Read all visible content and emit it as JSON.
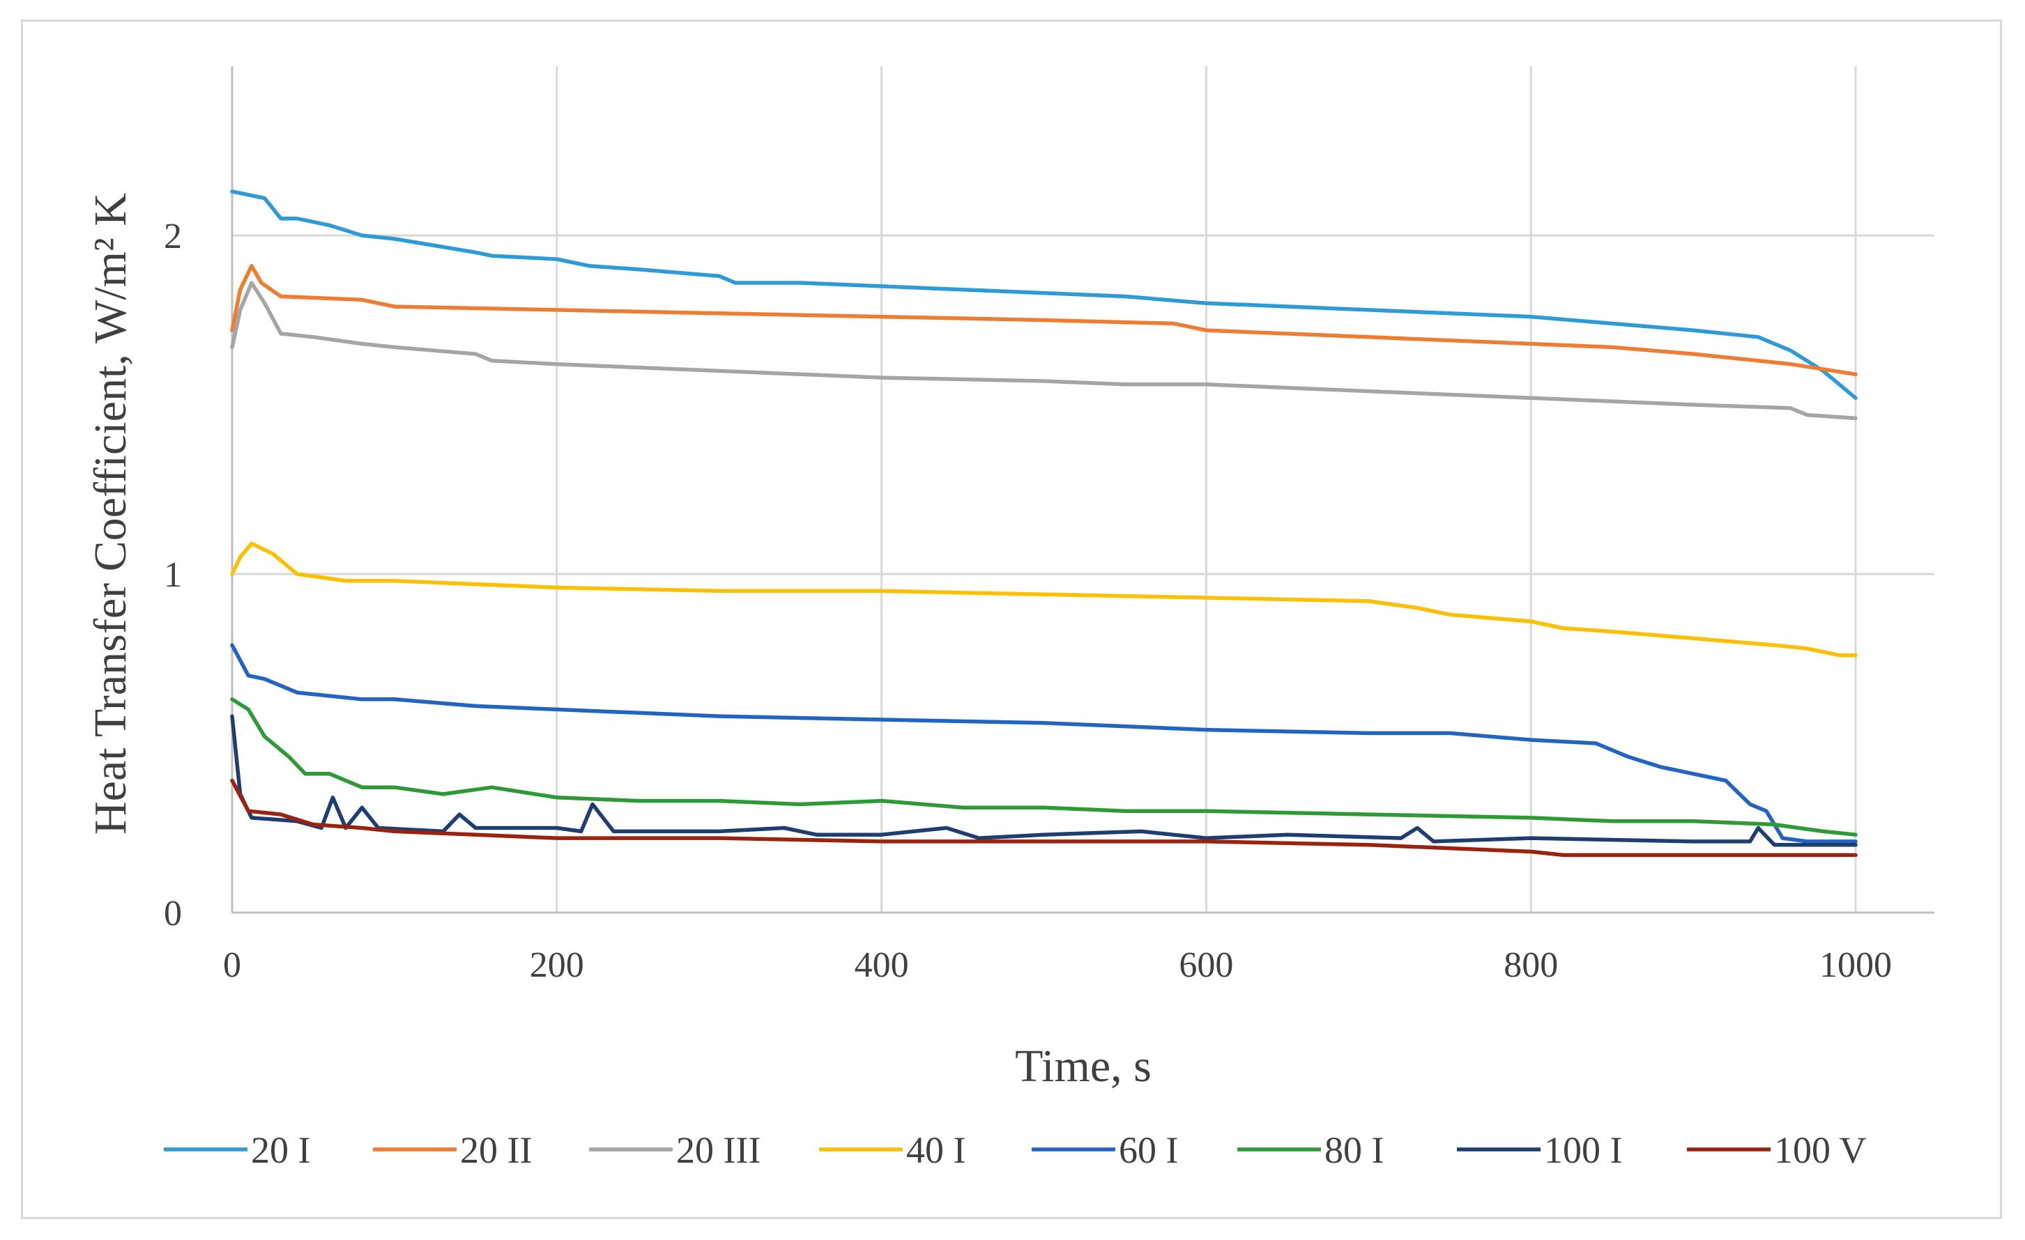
{
  "chart_data": {
    "type": "line",
    "title": "",
    "xlabel": "Time, s",
    "ylabel": "Heat Transfer Coefficient, W/m² K",
    "xlim": [
      0,
      1000
    ],
    "ylim": [
      0,
      2.5
    ],
    "x_ticks": [
      0,
      200,
      400,
      600,
      800,
      1000
    ],
    "x_tick_labels": [
      "0",
      "200",
      "400",
      "600",
      "800",
      "1000"
    ],
    "y_ticks": [
      0,
      1,
      2
    ],
    "y_tick_labels": [
      "0",
      "1",
      "2"
    ],
    "grid": true,
    "legend_position": "bottom",
    "series": [
      {
        "name": "20 I",
        "color": "#2e9bd6",
        "points": [
          [
            0,
            2.13
          ],
          [
            20,
            2.11
          ],
          [
            30,
            2.05
          ],
          [
            40,
            2.05
          ],
          [
            60,
            2.03
          ],
          [
            80,
            2.0
          ],
          [
            100,
            1.99
          ],
          [
            150,
            1.95
          ],
          [
            160,
            1.94
          ],
          [
            200,
            1.93
          ],
          [
            220,
            1.91
          ],
          [
            250,
            1.9
          ],
          [
            300,
            1.88
          ],
          [
            310,
            1.86
          ],
          [
            350,
            1.86
          ],
          [
            400,
            1.85
          ],
          [
            500,
            1.83
          ],
          [
            550,
            1.82
          ],
          [
            600,
            1.8
          ],
          [
            700,
            1.78
          ],
          [
            800,
            1.76
          ],
          [
            850,
            1.74
          ],
          [
            900,
            1.72
          ],
          [
            940,
            1.7
          ],
          [
            960,
            1.66
          ],
          [
            980,
            1.6
          ],
          [
            1000,
            1.52
          ]
        ]
      },
      {
        "name": "20 II",
        "color": "#ee7d31",
        "points": [
          [
            0,
            1.72
          ],
          [
            5,
            1.84
          ],
          [
            12,
            1.91
          ],
          [
            18,
            1.86
          ],
          [
            30,
            1.82
          ],
          [
            80,
            1.81
          ],
          [
            100,
            1.79
          ],
          [
            200,
            1.78
          ],
          [
            300,
            1.77
          ],
          [
            400,
            1.76
          ],
          [
            500,
            1.75
          ],
          [
            580,
            1.74
          ],
          [
            600,
            1.72
          ],
          [
            700,
            1.7
          ],
          [
            800,
            1.68
          ],
          [
            850,
            1.67
          ],
          [
            900,
            1.65
          ],
          [
            960,
            1.62
          ],
          [
            1000,
            1.59
          ]
        ]
      },
      {
        "name": "20 III",
        "color": "#a5a5a5",
        "points": [
          [
            0,
            1.67
          ],
          [
            5,
            1.78
          ],
          [
            12,
            1.86
          ],
          [
            20,
            1.8
          ],
          [
            30,
            1.71
          ],
          [
            50,
            1.7
          ],
          [
            80,
            1.68
          ],
          [
            100,
            1.67
          ],
          [
            150,
            1.65
          ],
          [
            160,
            1.63
          ],
          [
            200,
            1.62
          ],
          [
            300,
            1.6
          ],
          [
            400,
            1.58
          ],
          [
            500,
            1.57
          ],
          [
            550,
            1.56
          ],
          [
            600,
            1.56
          ],
          [
            700,
            1.54
          ],
          [
            800,
            1.52
          ],
          [
            900,
            1.5
          ],
          [
            960,
            1.49
          ],
          [
            970,
            1.47
          ],
          [
            1000,
            1.46
          ]
        ]
      },
      {
        "name": "40 I",
        "color": "#fdc000",
        "points": [
          [
            0,
            1.0
          ],
          [
            5,
            1.05
          ],
          [
            12,
            1.09
          ],
          [
            25,
            1.06
          ],
          [
            40,
            1.0
          ],
          [
            70,
            0.98
          ],
          [
            100,
            0.98
          ],
          [
            150,
            0.97
          ],
          [
            200,
            0.96
          ],
          [
            300,
            0.95
          ],
          [
            400,
            0.95
          ],
          [
            500,
            0.94
          ],
          [
            600,
            0.93
          ],
          [
            700,
            0.92
          ],
          [
            730,
            0.9
          ],
          [
            750,
            0.88
          ],
          [
            800,
            0.86
          ],
          [
            820,
            0.84
          ],
          [
            850,
            0.83
          ],
          [
            900,
            0.81
          ],
          [
            950,
            0.79
          ],
          [
            970,
            0.78
          ],
          [
            990,
            0.76
          ],
          [
            1000,
            0.76
          ]
        ]
      },
      {
        "name": "60 I",
        "color": "#2164c2",
        "points": [
          [
            0,
            0.79
          ],
          [
            10,
            0.7
          ],
          [
            20,
            0.69
          ],
          [
            40,
            0.65
          ],
          [
            80,
            0.63
          ],
          [
            100,
            0.63
          ],
          [
            150,
            0.61
          ],
          [
            200,
            0.6
          ],
          [
            300,
            0.58
          ],
          [
            400,
            0.57
          ],
          [
            500,
            0.56
          ],
          [
            600,
            0.54
          ],
          [
            700,
            0.53
          ],
          [
            750,
            0.53
          ],
          [
            800,
            0.51
          ],
          [
            840,
            0.5
          ],
          [
            860,
            0.46
          ],
          [
            880,
            0.43
          ],
          [
            920,
            0.39
          ],
          [
            935,
            0.32
          ],
          [
            945,
            0.3
          ],
          [
            955,
            0.22
          ],
          [
            970,
            0.21
          ],
          [
            1000,
            0.21
          ]
        ]
      },
      {
        "name": "80 I",
        "color": "#2e9a36",
        "points": [
          [
            0,
            0.63
          ],
          [
            10,
            0.6
          ],
          [
            20,
            0.52
          ],
          [
            35,
            0.46
          ],
          [
            45,
            0.41
          ],
          [
            60,
            0.41
          ],
          [
            80,
            0.37
          ],
          [
            100,
            0.37
          ],
          [
            130,
            0.35
          ],
          [
            160,
            0.37
          ],
          [
            200,
            0.34
          ],
          [
            250,
            0.33
          ],
          [
            300,
            0.33
          ],
          [
            350,
            0.32
          ],
          [
            400,
            0.33
          ],
          [
            450,
            0.31
          ],
          [
            500,
            0.31
          ],
          [
            550,
            0.3
          ],
          [
            600,
            0.3
          ],
          [
            700,
            0.29
          ],
          [
            800,
            0.28
          ],
          [
            850,
            0.27
          ],
          [
            900,
            0.27
          ],
          [
            950,
            0.26
          ],
          [
            980,
            0.24
          ],
          [
            1000,
            0.23
          ]
        ]
      },
      {
        "name": "100 I",
        "color": "#1e3d70",
        "points": [
          [
            0,
            0.58
          ],
          [
            5,
            0.35
          ],
          [
            12,
            0.28
          ],
          [
            40,
            0.27
          ],
          [
            55,
            0.25
          ],
          [
            62,
            0.34
          ],
          [
            70,
            0.25
          ],
          [
            80,
            0.31
          ],
          [
            90,
            0.25
          ],
          [
            130,
            0.24
          ],
          [
            140,
            0.29
          ],
          [
            150,
            0.25
          ],
          [
            200,
            0.25
          ],
          [
            215,
            0.24
          ],
          [
            222,
            0.32
          ],
          [
            235,
            0.24
          ],
          [
            300,
            0.24
          ],
          [
            340,
            0.25
          ],
          [
            360,
            0.23
          ],
          [
            400,
            0.23
          ],
          [
            440,
            0.25
          ],
          [
            460,
            0.22
          ],
          [
            500,
            0.23
          ],
          [
            560,
            0.24
          ],
          [
            600,
            0.22
          ],
          [
            650,
            0.23
          ],
          [
            720,
            0.22
          ],
          [
            730,
            0.25
          ],
          [
            740,
            0.21
          ],
          [
            800,
            0.22
          ],
          [
            900,
            0.21
          ],
          [
            935,
            0.21
          ],
          [
            940,
            0.25
          ],
          [
            950,
            0.2
          ],
          [
            980,
            0.2
          ],
          [
            1000,
            0.2
          ]
        ]
      },
      {
        "name": "100 V",
        "color": "#9a220e",
        "points": [
          [
            0,
            0.39
          ],
          [
            10,
            0.3
          ],
          [
            30,
            0.29
          ],
          [
            50,
            0.26
          ],
          [
            80,
            0.25
          ],
          [
            100,
            0.24
          ],
          [
            200,
            0.22
          ],
          [
            300,
            0.22
          ],
          [
            400,
            0.21
          ],
          [
            600,
            0.21
          ],
          [
            700,
            0.2
          ],
          [
            800,
            0.18
          ],
          [
            820,
            0.17
          ],
          [
            900,
            0.17
          ],
          [
            1000,
            0.17
          ]
        ]
      }
    ]
  }
}
